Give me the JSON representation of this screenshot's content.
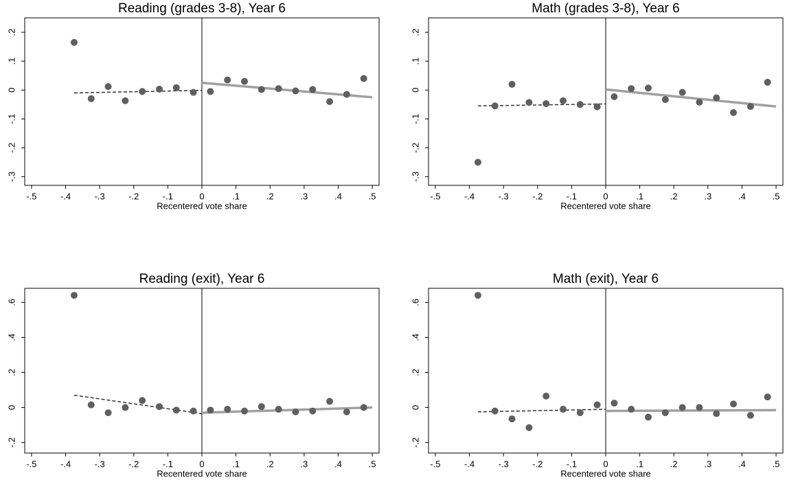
{
  "chart_data": [
    {
      "type": "scatter",
      "title": "Reading (grades 3-8), Year 6",
      "x_label": "Recentered vote share",
      "x": [
        -0.375,
        -0.325,
        -0.275,
        -0.225,
        -0.175,
        -0.125,
        -0.075,
        -0.025,
        0.025,
        0.075,
        0.125,
        0.175,
        0.225,
        0.275,
        0.325,
        0.375,
        0.425,
        0.475
      ],
      "values": [
        0.165,
        -0.03,
        0.012,
        -0.037,
        -0.005,
        0.003,
        0.008,
        -0.008,
        -0.005,
        0.035,
        0.03,
        0.002,
        0.005,
        -0.003,
        0.002,
        -0.04,
        -0.015,
        0.04
      ],
      "color": "#5f5f5f",
      "fit_left": {
        "x": [
          -0.375,
          0
        ],
        "values": [
          -0.01,
          -0.001
        ],
        "color": "#333333"
      },
      "fit_right": {
        "x": [
          0,
          0.5
        ],
        "values": [
          0.025,
          -0.025
        ],
        "color": "#a0a0a0"
      },
      "cutoff": 0,
      "xlim": [
        -0.52,
        0.52
      ],
      "ylim": [
        -0.33,
        0.25
      ],
      "xticks": [
        {
          "value": -0.5,
          "label": "-.5"
        },
        {
          "value": -0.4,
          "label": "-.4"
        },
        {
          "value": -0.3,
          "label": "-.3"
        },
        {
          "value": -0.2,
          "label": "-.2"
        },
        {
          "value": -0.1,
          "label": "-.1"
        },
        0,
        {
          "value": 0.1,
          "label": ".1"
        },
        {
          "value": 0.2,
          "label": ".2"
        },
        {
          "value": 0.3,
          "label": ".3"
        },
        {
          "value": 0.4,
          "label": ".4"
        },
        {
          "value": 0.5,
          "label": ".5"
        }
      ],
      "yticks": [
        {
          "value": -0.3,
          "label": "-.3"
        },
        {
          "value": -0.2,
          "label": "-.2"
        },
        {
          "value": -0.1,
          "label": "-.1"
        },
        0,
        {
          "value": 0.1,
          "label": ".1"
        },
        {
          "value": 0.2,
          "label": ".2"
        }
      ]
    },
    {
      "type": "scatter",
      "title": "Math (grades 3-8), Year 6",
      "x_label": "Recentered vote share",
      "x": [
        -0.375,
        -0.325,
        -0.275,
        -0.225,
        -0.175,
        -0.125,
        -0.075,
        -0.025,
        0.025,
        0.075,
        0.125,
        0.175,
        0.225,
        0.275,
        0.325,
        0.375,
        0.425,
        0.475
      ],
      "values": [
        -0.25,
        -0.055,
        0.02,
        -0.043,
        -0.047,
        -0.037,
        -0.05,
        -0.058,
        -0.023,
        0.005,
        0.007,
        -0.033,
        -0.008,
        -0.042,
        -0.027,
        -0.078,
        -0.057,
        0.027
      ],
      "color": "#5f5f5f",
      "fit_left": {
        "x": [
          -0.375,
          0
        ],
        "values": [
          -0.055,
          -0.048
        ],
        "color": "#333333"
      },
      "fit_right": {
        "x": [
          0,
          0.5
        ],
        "values": [
          0.002,
          -0.057
        ],
        "color": "#a0a0a0"
      },
      "cutoff": 0,
      "xlim": [
        -0.52,
        0.52
      ],
      "ylim": [
        -0.33,
        0.25
      ],
      "xticks": [
        {
          "value": -0.5,
          "label": "-.5"
        },
        {
          "value": -0.4,
          "label": "-.4"
        },
        {
          "value": -0.3,
          "label": "-.3"
        },
        {
          "value": -0.2,
          "label": "-.2"
        },
        {
          "value": -0.1,
          "label": "-.1"
        },
        0,
        {
          "value": 0.1,
          "label": ".1"
        },
        {
          "value": 0.2,
          "label": ".2"
        },
        {
          "value": 0.3,
          "label": ".3"
        },
        {
          "value": 0.4,
          "label": ".4"
        },
        {
          "value": 0.5,
          "label": ".5"
        }
      ],
      "yticks": [
        {
          "value": -0.3,
          "label": "-.3"
        },
        {
          "value": -0.2,
          "label": "-.2"
        },
        {
          "value": -0.1,
          "label": "-.1"
        },
        0,
        {
          "value": 0.1,
          "label": ".1"
        },
        {
          "value": 0.2,
          "label": ".2"
        }
      ]
    },
    {
      "type": "scatter",
      "title": "Reading (exit), Year 6",
      "x_label": "Recentered vote share",
      "x": [
        -0.375,
        -0.325,
        -0.275,
        -0.225,
        -0.175,
        -0.125,
        -0.075,
        -0.025,
        0.025,
        0.075,
        0.125,
        0.175,
        0.225,
        0.275,
        0.325,
        0.375,
        0.425,
        0.475
      ],
      "values": [
        0.64,
        0.015,
        -0.03,
        0.0,
        0.04,
        0.005,
        -0.015,
        -0.02,
        -0.015,
        -0.01,
        -0.02,
        0.005,
        -0.01,
        -0.025,
        -0.02,
        0.035,
        -0.025,
        0.0
      ],
      "color": "#5f5f5f",
      "fit_left": {
        "x": [
          -0.375,
          0
        ],
        "values": [
          0.07,
          -0.035
        ],
        "color": "#333333"
      },
      "fit_right": {
        "x": [
          0,
          0.5
        ],
        "values": [
          -0.03,
          0.0
        ],
        "color": "#a0a0a0"
      },
      "cutoff": 0,
      "xlim": [
        -0.52,
        0.52
      ],
      "ylim": [
        -0.26,
        0.68
      ],
      "xticks": [
        {
          "value": -0.5,
          "label": "-.5"
        },
        {
          "value": -0.4,
          "label": "-.4"
        },
        {
          "value": -0.3,
          "label": "-.3"
        },
        {
          "value": -0.2,
          "label": "-.2"
        },
        {
          "value": -0.1,
          "label": "-.1"
        },
        0,
        {
          "value": 0.1,
          "label": ".1"
        },
        {
          "value": 0.2,
          "label": ".2"
        },
        {
          "value": 0.3,
          "label": ".3"
        },
        {
          "value": 0.4,
          "label": ".4"
        },
        {
          "value": 0.5,
          "label": ".5"
        }
      ],
      "yticks": [
        {
          "value": -0.2,
          "label": "-.2"
        },
        0,
        {
          "value": 0.2,
          "label": ".2"
        },
        {
          "value": 0.4,
          "label": ".4"
        },
        {
          "value": 0.6,
          "label": ".6"
        }
      ]
    },
    {
      "type": "scatter",
      "title": "Math (exit), Year 6",
      "x_label": "Recentered vote share",
      "x": [
        -0.375,
        -0.325,
        -0.275,
        -0.225,
        -0.175,
        -0.125,
        -0.075,
        -0.025,
        0.025,
        0.075,
        0.125,
        0.175,
        0.225,
        0.275,
        0.325,
        0.375,
        0.425,
        0.475
      ],
      "values": [
        0.64,
        -0.02,
        -0.065,
        -0.115,
        0.065,
        -0.01,
        -0.03,
        0.015,
        0.025,
        -0.01,
        -0.055,
        -0.03,
        0.0,
        0.0,
        -0.035,
        0.02,
        -0.045,
        0.06
      ],
      "color": "#5f5f5f",
      "fit_left": {
        "x": [
          -0.375,
          0
        ],
        "values": [
          -0.025,
          -0.01
        ],
        "color": "#333333"
      },
      "fit_right": {
        "x": [
          0,
          0.5
        ],
        "values": [
          -0.02,
          -0.015
        ],
        "color": "#a0a0a0"
      },
      "cutoff": 0,
      "xlim": [
        -0.52,
        0.52
      ],
      "ylim": [
        -0.26,
        0.68
      ],
      "xticks": [
        {
          "value": -0.5,
          "label": "-.5"
        },
        {
          "value": -0.4,
          "label": "-.4"
        },
        {
          "value": -0.3,
          "label": "-.3"
        },
        {
          "value": -0.2,
          "label": "-.2"
        },
        {
          "value": -0.1,
          "label": "-.1"
        },
        0,
        {
          "value": 0.1,
          "label": ".1"
        },
        {
          "value": 0.2,
          "label": ".2"
        },
        {
          "value": 0.3,
          "label": ".3"
        },
        {
          "value": 0.4,
          "label": ".4"
        },
        {
          "value": 0.5,
          "label": ".5"
        }
      ],
      "yticks": [
        {
          "value": -0.2,
          "label": "-.2"
        },
        0,
        {
          "value": 0.2,
          "label": ".2"
        },
        {
          "value": 0.4,
          "label": ".4"
        },
        {
          "value": 0.6,
          "label": ".6"
        }
      ]
    }
  ]
}
